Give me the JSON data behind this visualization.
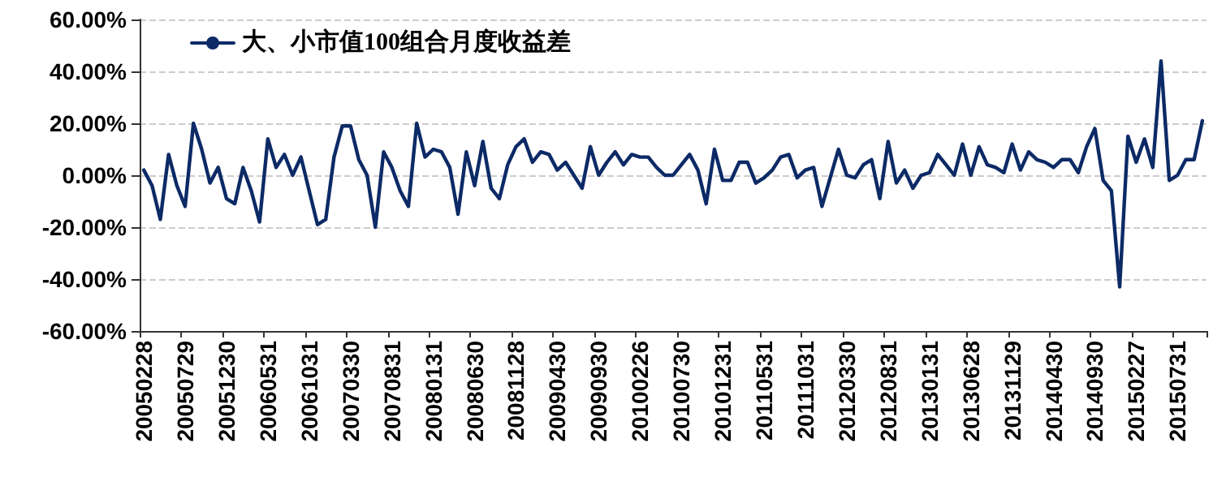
{
  "chart_data": {
    "type": "line",
    "categories": [
      "20050228",
      null,
      null,
      null,
      null,
      "20050729",
      null,
      null,
      null,
      null,
      "20051230",
      null,
      null,
      null,
      null,
      "20060531",
      null,
      null,
      null,
      null,
      "20061031",
      null,
      null,
      null,
      null,
      "20070330",
      null,
      null,
      null,
      null,
      "20070831",
      null,
      null,
      null,
      null,
      "20080131",
      null,
      null,
      null,
      null,
      "20080630",
      null,
      null,
      null,
      null,
      "20081128",
      null,
      null,
      null,
      null,
      "20090430",
      null,
      null,
      null,
      null,
      "20090930",
      null,
      null,
      null,
      null,
      "20100226",
      null,
      null,
      null,
      null,
      "20100730",
      null,
      null,
      null,
      null,
      "20101231",
      null,
      null,
      null,
      null,
      "20110531",
      null,
      null,
      null,
      null,
      "20111031",
      null,
      null,
      null,
      null,
      "20120330",
      null,
      null,
      null,
      null,
      "20120831",
      null,
      null,
      null,
      null,
      "20130131",
      null,
      null,
      null,
      null,
      "20130628",
      null,
      null,
      null,
      null,
      "20131129",
      null,
      null,
      null,
      null,
      "20140430",
      null,
      null,
      null,
      null,
      "20140930",
      null,
      null,
      null,
      null,
      "20150227",
      null,
      null,
      null,
      null,
      "20150731",
      null,
      null,
      null
    ],
    "series": [
      {
        "name": "大、小市值100组合月度收益差",
        "color": "#0c2a66",
        "values": [
          2,
          -4,
          -17,
          8,
          -4,
          -12,
          20,
          10,
          -3,
          3,
          -9,
          -11,
          3,
          -6,
          -18,
          14,
          3,
          8,
          0,
          7,
          -6,
          -19,
          -17,
          7,
          19,
          19,
          6,
          0,
          -20,
          9,
          3,
          -6,
          -12,
          20,
          7,
          10,
          9,
          3,
          -15,
          9,
          -4,
          13,
          -5,
          -9,
          4,
          11,
          14,
          5,
          9,
          8,
          2,
          5,
          0,
          -5,
          11,
          0,
          5,
          9,
          4,
          8,
          7,
          7,
          3,
          0,
          0,
          4,
          8,
          2,
          -11,
          10,
          -2,
          -2,
          5,
          5,
          -3,
          -1,
          2,
          7,
          8,
          -1,
          2,
          3,
          -12,
          -1,
          10,
          0,
          -1,
          4,
          6,
          -9,
          13,
          -3,
          2,
          -5,
          0,
          1,
          8,
          4,
          0,
          12,
          0,
          11,
          4,
          3,
          1,
          12,
          2,
          9,
          6,
          5,
          3,
          6,
          6,
          1,
          11,
          18,
          -2,
          -6,
          -43,
          15,
          5,
          14,
          3,
          44,
          -2,
          0,
          6,
          6,
          21
        ]
      }
    ],
    "ylim": [
      -60,
      60
    ],
    "yticks": [
      {
        "value": -60,
        "label": "-60.00%"
      },
      {
        "value": -40,
        "label": "-40.00%"
      },
      {
        "value": -20,
        "label": "-20.00%"
      },
      {
        "value": 0,
        "label": "0.00%"
      },
      {
        "value": 20,
        "label": "20.00%"
      },
      {
        "value": 40,
        "label": "40.00%"
      },
      {
        "value": 60,
        "label": "60.00%"
      }
    ],
    "grid": "y",
    "legend": "top left",
    "marker": "none",
    "line_style": "solid"
  }
}
